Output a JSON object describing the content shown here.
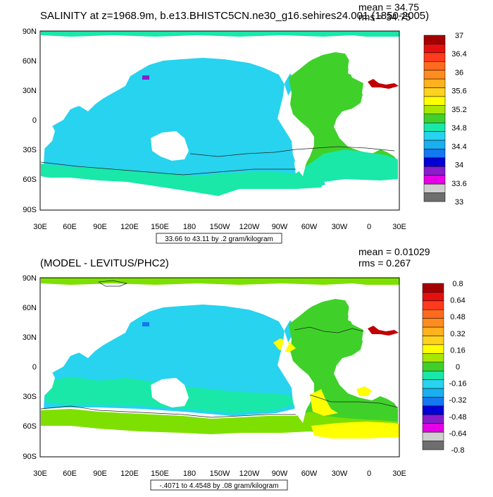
{
  "panels": [
    {
      "title": "SALINITY at z=1968.9m, b.e13.BHISTC5CN.ne30_g16.sehires24.001 (1850-2005)",
      "mean": "mean = 34.75",
      "rms": "rms = 34.75",
      "info": "33.66 to 43.11 by .2 gram/kilogram",
      "ocean_color": "#27d3ee",
      "atlantic_color": "#3fd12a",
      "colorbar": {
        "colors": [
          "#a50000",
          "#e41010",
          "#ff3b1e",
          "#ff6a1e",
          "#ff8c1e",
          "#ffb21e",
          "#ffd21e",
          "#ffff00",
          "#a8e600",
          "#3fd12a",
          "#19e8a8",
          "#27d3ee",
          "#18b0f0",
          "#1478f0",
          "#0000d6",
          "#8a1ccc",
          "#e600e6",
          "#cfcfcf",
          "#6e6e6e"
        ],
        "labels": [
          "37",
          "36.4",
          "36",
          "35.6",
          "35.2",
          "34.8",
          "34.4",
          "34",
          "33.6",
          "33"
        ]
      }
    },
    {
      "title": "(MODEL - LEVITUS/PHC2)",
      "mean": "mean = 0.01029",
      "rms": "rms = 0.267",
      "info": "-.4071 to 4.4548 by .08 gram/kilogram",
      "ocean_color": "#27d3ee",
      "atlantic_color": "#3fd12a",
      "colorbar": {
        "colors": [
          "#a50000",
          "#e41010",
          "#ff3b1e",
          "#ff6a1e",
          "#ff8c1e",
          "#ffb21e",
          "#ffd21e",
          "#ffff00",
          "#a8e600",
          "#3fd12a",
          "#19e8a8",
          "#27d3ee",
          "#18b0f0",
          "#1478f0",
          "#0000d6",
          "#8a1ccc",
          "#e600e6",
          "#cfcfcf",
          "#6e6e6e"
        ],
        "labels": [
          "0.8",
          "0.64",
          "0.48",
          "0.32",
          "0.16",
          "0",
          "-0.16",
          "-0.32",
          "-0.48",
          "-0.64",
          "-0.8"
        ]
      }
    }
  ],
  "axes": {
    "lat_labels": [
      "90N",
      "60N",
      "30N",
      "0",
      "30S",
      "60S",
      "90S"
    ],
    "lon_labels": [
      "30E",
      "60E",
      "90E",
      "120E",
      "150E",
      "180",
      "150W",
      "120W",
      "90W",
      "60W",
      "30W",
      "0",
      "30E"
    ]
  }
}
